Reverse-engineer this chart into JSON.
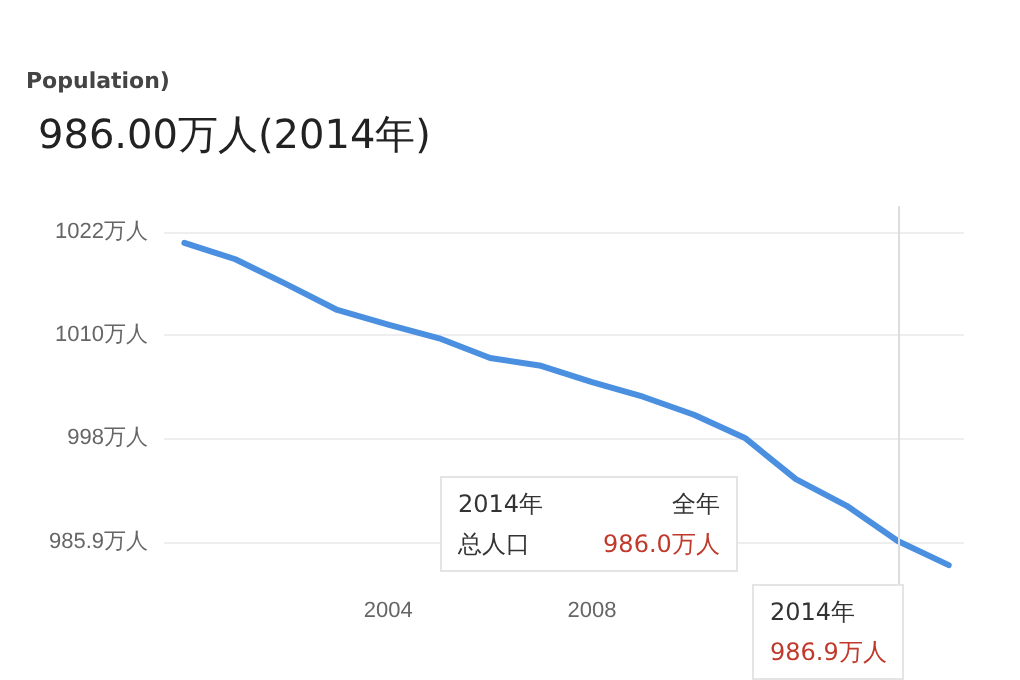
{
  "chart_data": {
    "type": "line",
    "title": "986.00万人(2014年)",
    "subtitle": "Population)",
    "x": [
      2000,
      2001,
      2002,
      2003,
      2004,
      2005,
      2006,
      2007,
      2008,
      2009,
      2010,
      2011,
      2012,
      2013,
      2014,
      2015
    ],
    "series": [
      {
        "color": "#4a8fe0",
        "values": [
          1020.7,
          1018.8,
          1015.9,
          1012.9,
          1011.2,
          1009.6,
          1007.3,
          1006.4,
          1004.5,
          1002.8,
          1000.7,
          998.0,
          993.2,
          990.1,
          986.0,
          983.2
        ]
      }
    ],
    "xlim": [
      1999.6,
      2015.3
    ],
    "xticks": [
      2004,
      2008
    ],
    "ylim": [
      981,
      1025
    ],
    "yticks": [
      {
        "value": 985.9,
        "label": "985.9万人"
      },
      {
        "value": 998,
        "label": "998万人"
      },
      {
        "value": 1010,
        "label": "1010万人"
      },
      {
        "value": 1022,
        "label": "1022万人"
      }
    ],
    "grid": "y",
    "marker": "none",
    "line_style": "solid",
    "ref_lines": [
      {
        "axis": "x",
        "value": 2014,
        "color": "#dddddd"
      }
    ],
    "annotations": [
      "2014年",
      "全年",
      "总人口",
      "986.0万人",
      "2014年",
      "986.9万人"
    ]
  }
}
